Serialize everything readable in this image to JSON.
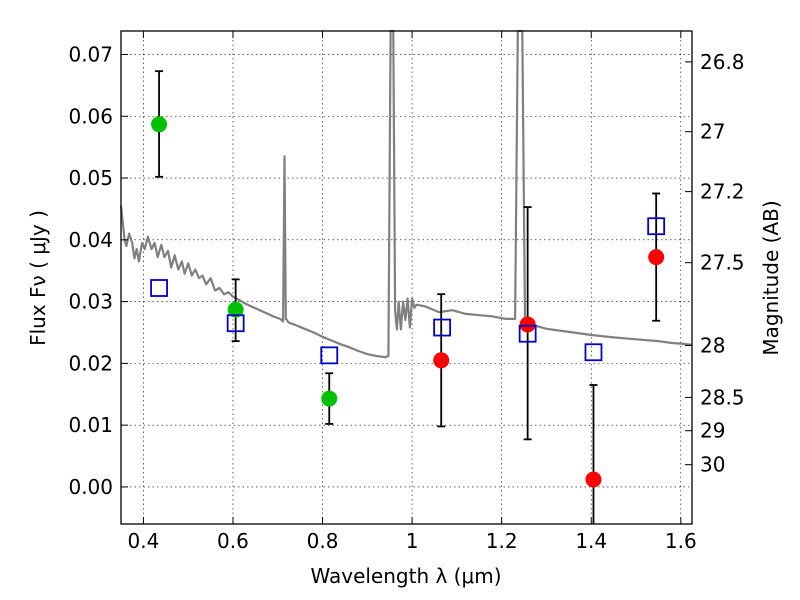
{
  "chart_data": {
    "type": "scatter",
    "xlabel": "Wavelength  λ (μm)",
    "ylabel": "Flux  Fν  ( μJy )",
    "y2label": "Magnitude (AB)",
    "xlim": [
      0.35,
      1.625
    ],
    "ylim": [
      -0.006,
      0.0738
    ],
    "grid": true,
    "x_ticks": [
      0.4,
      0.6,
      0.8,
      1.0,
      1.2,
      1.4,
      1.6
    ],
    "x_tick_labels": [
      "0.4",
      "0.6",
      "0.8",
      "1",
      "1.2",
      "1.4",
      "1.6"
    ],
    "y_ticks": [
      0.0,
      0.01,
      0.02,
      0.03,
      0.04,
      0.05,
      0.06,
      0.07
    ],
    "y_tick_labels": [
      "0.00",
      "0.01",
      "0.02",
      "0.03",
      "0.04",
      "0.05",
      "0.06",
      "0.07"
    ],
    "y2_ticks": [
      {
        "label": "26.8",
        "flux": 0.0688
      },
      {
        "label": "27",
        "flux": 0.0575
      },
      {
        "label": "27.2",
        "flux": 0.0478
      },
      {
        "label": "27.5",
        "flux": 0.0363
      },
      {
        "label": "28",
        "flux": 0.0229
      },
      {
        "label": "28.5",
        "flux": 0.0145
      },
      {
        "label": "29",
        "flux": 0.0091
      },
      {
        "label": "30",
        "flux": 0.0036
      }
    ],
    "series": [
      {
        "marker": "circle",
        "color": "#00c000",
        "x": [
          0.435,
          0.606,
          0.815
        ],
        "y": [
          0.0587,
          0.0287,
          0.0143
        ],
        "err_low": [
          0.0502,
          0.0236,
          0.0102
        ],
        "err_high": [
          0.0673,
          0.0336,
          0.0184
        ]
      },
      {
        "marker": "circle",
        "color": "#ff0000",
        "x": [
          1.065,
          1.258,
          1.405,
          1.545
        ],
        "y": [
          0.0205,
          0.0263,
          0.0012,
          0.0372
        ],
        "err_low": [
          0.0098,
          0.0077,
          -0.0065,
          0.0269
        ],
        "err_high": [
          0.0312,
          0.0453,
          0.0165,
          0.0475
        ]
      },
      {
        "marker": "open-square",
        "color": "#0000cc",
        "x": [
          0.435,
          0.606,
          0.815,
          1.067,
          1.258,
          1.405,
          1.545
        ],
        "y": [
          0.0322,
          0.0265,
          0.0213,
          0.0258,
          0.0248,
          0.0218,
          0.0422
        ]
      },
      {
        "line": "spectrum",
        "color": "#808080",
        "x": [
          0.35,
          0.358,
          0.362,
          0.368,
          0.375,
          0.38,
          0.385,
          0.39,
          0.397,
          0.403,
          0.41,
          0.418,
          0.425,
          0.432,
          0.44,
          0.447,
          0.455,
          0.462,
          0.47,
          0.478,
          0.486,
          0.492,
          0.5,
          0.508,
          0.516,
          0.524,
          0.532,
          0.54,
          0.55,
          0.56,
          0.57,
          0.58,
          0.59,
          0.6,
          0.615,
          0.63,
          0.645,
          0.66,
          0.675,
          0.69,
          0.705,
          0.712,
          0.715,
          0.718,
          0.721,
          0.724,
          0.74,
          0.76,
          0.78,
          0.8,
          0.82,
          0.84,
          0.86,
          0.88,
          0.9,
          0.92,
          0.94,
          0.947,
          0.952,
          0.955,
          0.958,
          0.962,
          0.966,
          0.97,
          0.975,
          0.98,
          0.985,
          0.99,
          0.995,
          1.0,
          1.005,
          1.01,
          1.03,
          1.06,
          1.09,
          1.12,
          1.15,
          1.18,
          1.21,
          1.23,
          1.236,
          1.24,
          1.246,
          1.252,
          1.258,
          1.27,
          1.3,
          1.35,
          1.4,
          1.45,
          1.5,
          1.55,
          1.58,
          1.6,
          1.625
        ],
        "y": [
          0.0455,
          0.04,
          0.039,
          0.041,
          0.0395,
          0.037,
          0.0385,
          0.0365,
          0.0395,
          0.0385,
          0.0405,
          0.0385,
          0.0395,
          0.0372,
          0.0392,
          0.0372,
          0.0382,
          0.0355,
          0.0375,
          0.0352,
          0.0365,
          0.0345,
          0.0362,
          0.0342,
          0.0352,
          0.0338,
          0.0342,
          0.0328,
          0.0338,
          0.0318,
          0.0322,
          0.0312,
          0.0315,
          0.0308,
          0.0302,
          0.0296,
          0.0291,
          0.0286,
          0.0281,
          0.0276,
          0.0272,
          0.0268,
          0.0535,
          0.0272,
          0.027,
          0.0266,
          0.0262,
          0.0256,
          0.025,
          0.0243,
          0.0237,
          0.0231,
          0.0226,
          0.022,
          0.0215,
          0.0212,
          0.021,
          0.0212,
          0.074,
          0.074,
          0.074,
          0.0285,
          0.0255,
          0.03,
          0.0255,
          0.03,
          0.027,
          0.0305,
          0.0258,
          0.0305,
          0.029,
          0.0295,
          0.0292,
          0.0283,
          0.0286,
          0.028,
          0.0278,
          0.0276,
          0.0272,
          0.0272,
          0.074,
          0.074,
          0.074,
          0.027,
          0.0267,
          0.0262,
          0.0256,
          0.0251,
          0.0246,
          0.0242,
          0.0239,
          0.0236,
          0.0233,
          0.0232,
          0.023
        ]
      }
    ]
  }
}
